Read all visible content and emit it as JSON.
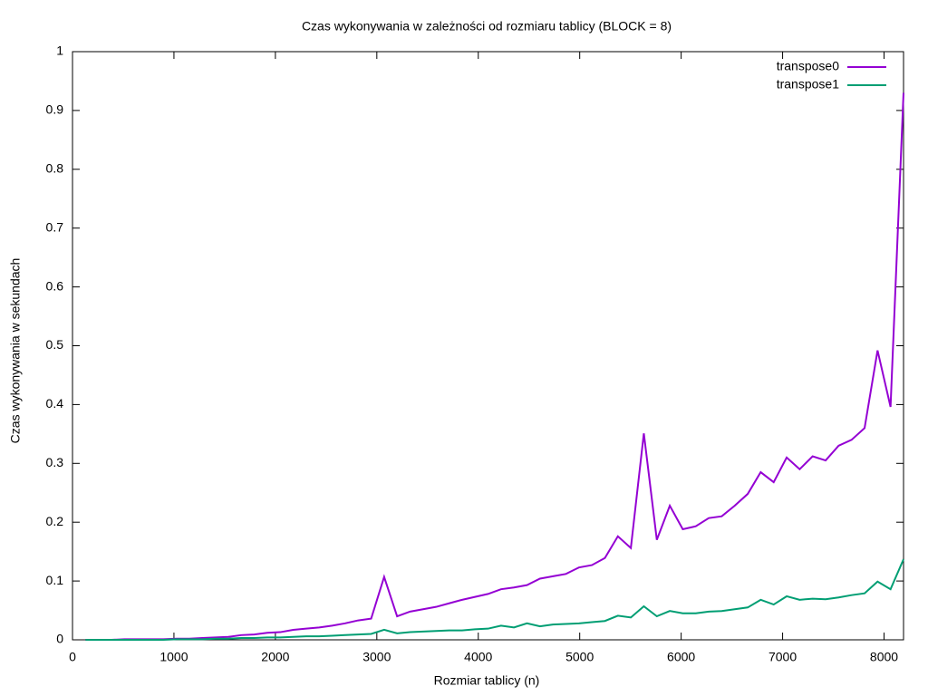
{
  "chart_data": {
    "type": "line",
    "title": "Czas wykonywania w zależności od rozmiaru tablicy (BLOCK = 8)",
    "x_label": "Rozmiar tablicy (n)",
    "y_label": "Czas wykonywania w sekundach",
    "x": [
      128,
      256,
      384,
      512,
      640,
      768,
      896,
      1024,
      1152,
      1280,
      1408,
      1536,
      1664,
      1792,
      1920,
      2048,
      2176,
      2304,
      2432,
      2560,
      2688,
      2816,
      2944,
      3072,
      3200,
      3328,
      3456,
      3584,
      3712,
      3840,
      3968,
      4096,
      4224,
      4352,
      4480,
      4608,
      4736,
      4864,
      4992,
      5120,
      5248,
      5376,
      5504,
      5632,
      5760,
      5888,
      6016,
      6144,
      6272,
      6400,
      6528,
      6656,
      6784,
      6912,
      7040,
      7168,
      7296,
      7424,
      7552,
      7680,
      7808,
      7936,
      8064,
      8192
    ],
    "series": [
      {
        "name": "transpose0",
        "color": "#9400d3",
        "values": [
          0.0,
          0.0,
          0.0,
          0.001,
          0.001,
          0.001,
          0.001,
          0.002,
          0.002,
          0.003,
          0.004,
          0.005,
          0.008,
          0.009,
          0.012,
          0.013,
          0.017,
          0.019,
          0.021,
          0.024,
          0.028,
          0.033,
          0.036,
          0.107,
          0.04,
          0.048,
          0.052,
          0.056,
          0.062,
          0.068,
          0.073,
          0.078,
          0.086,
          0.089,
          0.093,
          0.104,
          0.108,
          0.112,
          0.123,
          0.127,
          0.139,
          0.176,
          0.156,
          0.351,
          0.17,
          0.228,
          0.188,
          0.193,
          0.207,
          0.21,
          0.228,
          0.248,
          0.285,
          0.268,
          0.31,
          0.29,
          0.312,
          0.305,
          0.33,
          0.34,
          0.36,
          0.492,
          0.396,
          0.93
        ]
      },
      {
        "name": "transpose1",
        "color": "#009e73",
        "values": [
          0.0,
          0.0,
          0.0,
          0.0,
          0.0,
          0.0,
          0.0,
          0.001,
          0.001,
          0.001,
          0.002,
          0.002,
          0.003,
          0.003,
          0.004,
          0.004,
          0.005,
          0.006,
          0.006,
          0.007,
          0.008,
          0.009,
          0.01,
          0.017,
          0.011,
          0.013,
          0.014,
          0.015,
          0.016,
          0.016,
          0.018,
          0.019,
          0.024,
          0.021,
          0.028,
          0.023,
          0.026,
          0.027,
          0.028,
          0.03,
          0.032,
          0.041,
          0.038,
          0.057,
          0.04,
          0.049,
          0.045,
          0.045,
          0.048,
          0.049,
          0.052,
          0.055,
          0.068,
          0.06,
          0.074,
          0.068,
          0.07,
          0.069,
          0.072,
          0.076,
          0.079,
          0.099,
          0.086,
          0.137
        ]
      }
    ],
    "xlim": [
      0,
      8192
    ],
    "xticks": [
      0,
      1000,
      2000,
      3000,
      4000,
      5000,
      6000,
      7000,
      8000
    ],
    "ylim": [
      0,
      1
    ],
    "yticks": [
      0,
      0.1,
      0.2,
      0.3,
      0.4,
      0.5,
      0.6,
      0.7,
      0.8,
      0.9,
      1
    ],
    "legend": "top-right"
  }
}
